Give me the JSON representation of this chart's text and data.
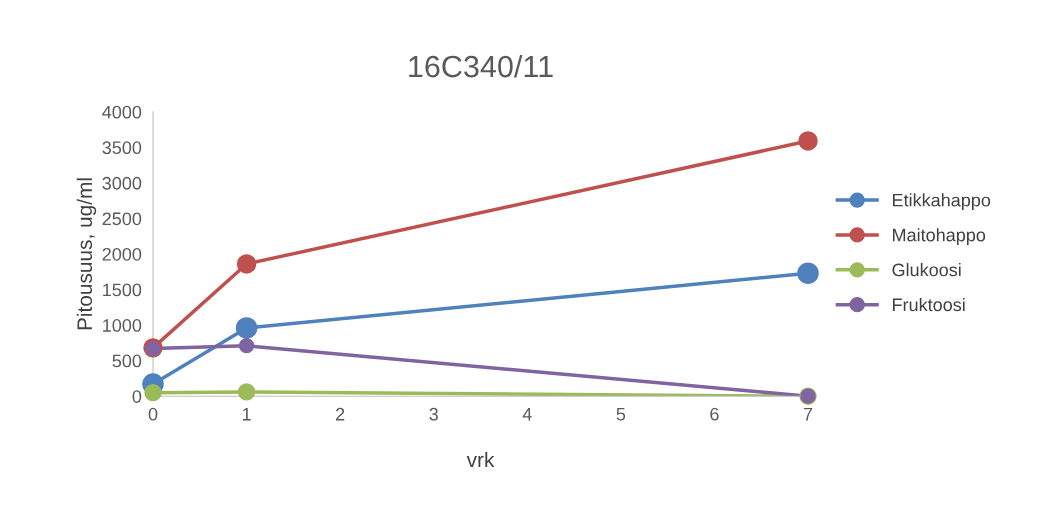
{
  "chart_data": {
    "type": "line",
    "title": "16C340/11",
    "xlabel": "vrk",
    "ylabel": "Pitousuus, ug/ml",
    "x": [
      0,
      1,
      7
    ],
    "series": [
      {
        "name": "Etikkahappo",
        "color": "#4f81bd",
        "values": [
          170,
          960,
          1730
        ]
      },
      {
        "name": "Maitohappo",
        "color": "#c0504d",
        "values": [
          680,
          1860,
          3590
        ]
      },
      {
        "name": "Glukoosi",
        "color": "#9bbb59",
        "values": [
          50,
          60,
          0
        ]
      },
      {
        "name": "Fruktoosi",
        "color": "#8064a2",
        "values": [
          670,
          710,
          0
        ]
      }
    ],
    "xlim": [
      0,
      7
    ],
    "xticks": [
      0,
      1,
      2,
      3,
      4,
      5,
      6,
      7
    ],
    "ylim": [
      0,
      4000
    ],
    "yticks": [
      0,
      500,
      1000,
      1500,
      2000,
      2500,
      3000,
      3500,
      4000
    ],
    "grid": false,
    "legend": "right",
    "marker": "circle",
    "line_style": "solid"
  }
}
